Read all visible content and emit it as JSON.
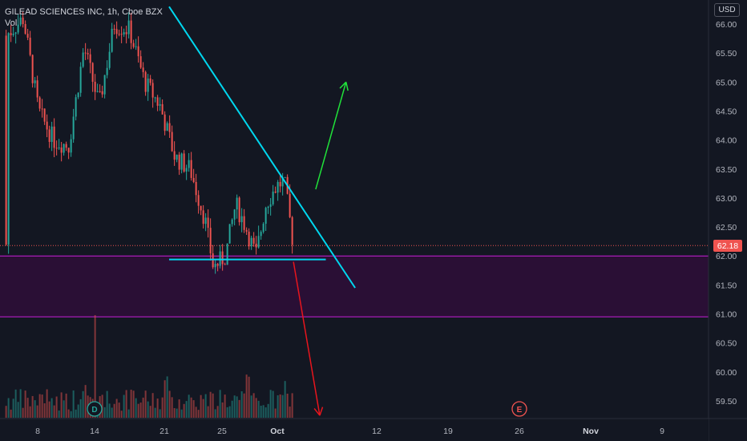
{
  "legend": {
    "symbol_line": "GILEAD SCIENCES INC, 1h, Cboe BZX",
    "vol_label": "Vol"
  },
  "currency": "USD",
  "last_price_label": "62.18",
  "event_markers": [
    {
      "label": "D",
      "color": "#26a69a",
      "x_label": "14"
    },
    {
      "label": "E",
      "color": "#ef5350",
      "x_label": "26"
    }
  ],
  "colors": {
    "background": "#131722",
    "up": "#26a69a",
    "down": "#ef5350",
    "zone_fill": "#2a0f35",
    "zone_border": "#c81fd8",
    "trendline": "#00d7ef",
    "arrow_up": "#20e33a",
    "arrow_down": "#e8151d"
  },
  "chart_data": {
    "type": "candlestick",
    "title": "GILEAD SCIENCES INC, 1h, Cboe BZX",
    "ylim": [
      59.2,
      66.2
    ],
    "yticks": [
      "66.00",
      "65.50",
      "65.00",
      "64.50",
      "64.00",
      "63.50",
      "63.00",
      "62.50",
      "62.00",
      "61.50",
      "61.00",
      "60.50",
      "60.00",
      "59.50"
    ],
    "xticks": [
      "8",
      "14",
      "21",
      "25",
      "Oct",
      "12",
      "19",
      "26",
      "Nov",
      "9"
    ],
    "current_price": 62.18,
    "zone": {
      "top": 62.0,
      "bottom": 60.95
    },
    "support_line": {
      "price": 61.94,
      "from_day": 21.0,
      "to_day": 36.5
    },
    "trendline": {
      "from": {
        "day": 21.0,
        "price": 66.3
      },
      "to": {
        "day": 39.4,
        "price": 61.45
      }
    },
    "arrow_up": {
      "from": {
        "day": 35.5,
        "price": 63.15
      },
      "to": {
        "day": 38.5,
        "price": 65.0
      }
    },
    "arrow_down": {
      "from": {
        "day": 33.3,
        "price": 61.9
      },
      "to": {
        "day": 35.9,
        "price": 59.25
      }
    },
    "candles_summary": {
      "start_day": 4.8,
      "end_day": 33.2,
      "anchors": [
        {
          "day": 4.8,
          "price": 65.8
        },
        {
          "day": 6.5,
          "price": 66.1
        },
        {
          "day": 8.0,
          "price": 64.5
        },
        {
          "day": 9.5,
          "price": 64.0
        },
        {
          "day": 11.0,
          "price": 63.9
        },
        {
          "day": 12.5,
          "price": 65.6
        },
        {
          "day": 14.0,
          "price": 64.6
        },
        {
          "day": 15.5,
          "price": 66.0
        },
        {
          "day": 17.0,
          "price": 65.9
        },
        {
          "day": 18.5,
          "price": 65.0
        },
        {
          "day": 20.0,
          "price": 64.6
        },
        {
          "day": 21.5,
          "price": 63.7
        },
        {
          "day": 23.0,
          "price": 63.5
        },
        {
          "day": 24.5,
          "price": 62.6
        },
        {
          "day": 25.3,
          "price": 61.8
        },
        {
          "day": 26.5,
          "price": 62.0
        },
        {
          "day": 27.5,
          "price": 62.9
        },
        {
          "day": 28.5,
          "price": 62.5
        },
        {
          "day": 29.5,
          "price": 62.0
        },
        {
          "day": 30.5,
          "price": 62.9
        },
        {
          "day": 31.5,
          "price": 63.2
        },
        {
          "day": 32.3,
          "price": 63.3
        },
        {
          "day": 33.2,
          "price": 62.2
        }
      ]
    }
  }
}
